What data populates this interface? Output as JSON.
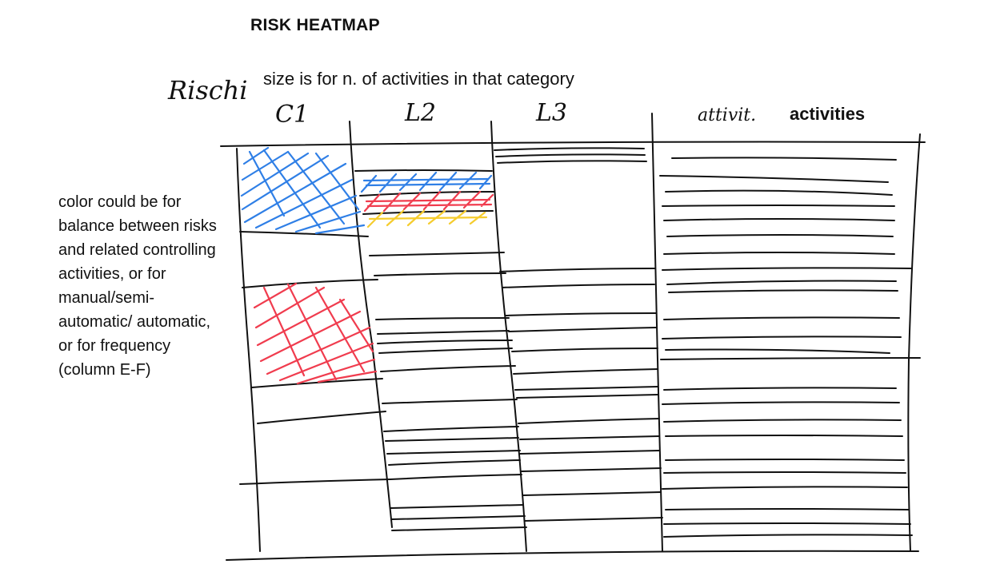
{
  "title": "RISK HEATMAP",
  "subtitle": "size is for n. of activities in that category",
  "side_note": "color could be for balance between risks and related controlling activities, or for manual/semi-automatic/ automatic, or for frequency (column E-F)",
  "handwritten": {
    "rischi": "Rischi",
    "col1": "C1",
    "col2": "L2",
    "col3": "L3",
    "col4": "attivit."
  },
  "activities_label": "activities",
  "colors": {
    "ink": "#111111",
    "blue": "#2f7fe6",
    "red": "#f03c4e",
    "yellow": "#f5cc2e"
  }
}
